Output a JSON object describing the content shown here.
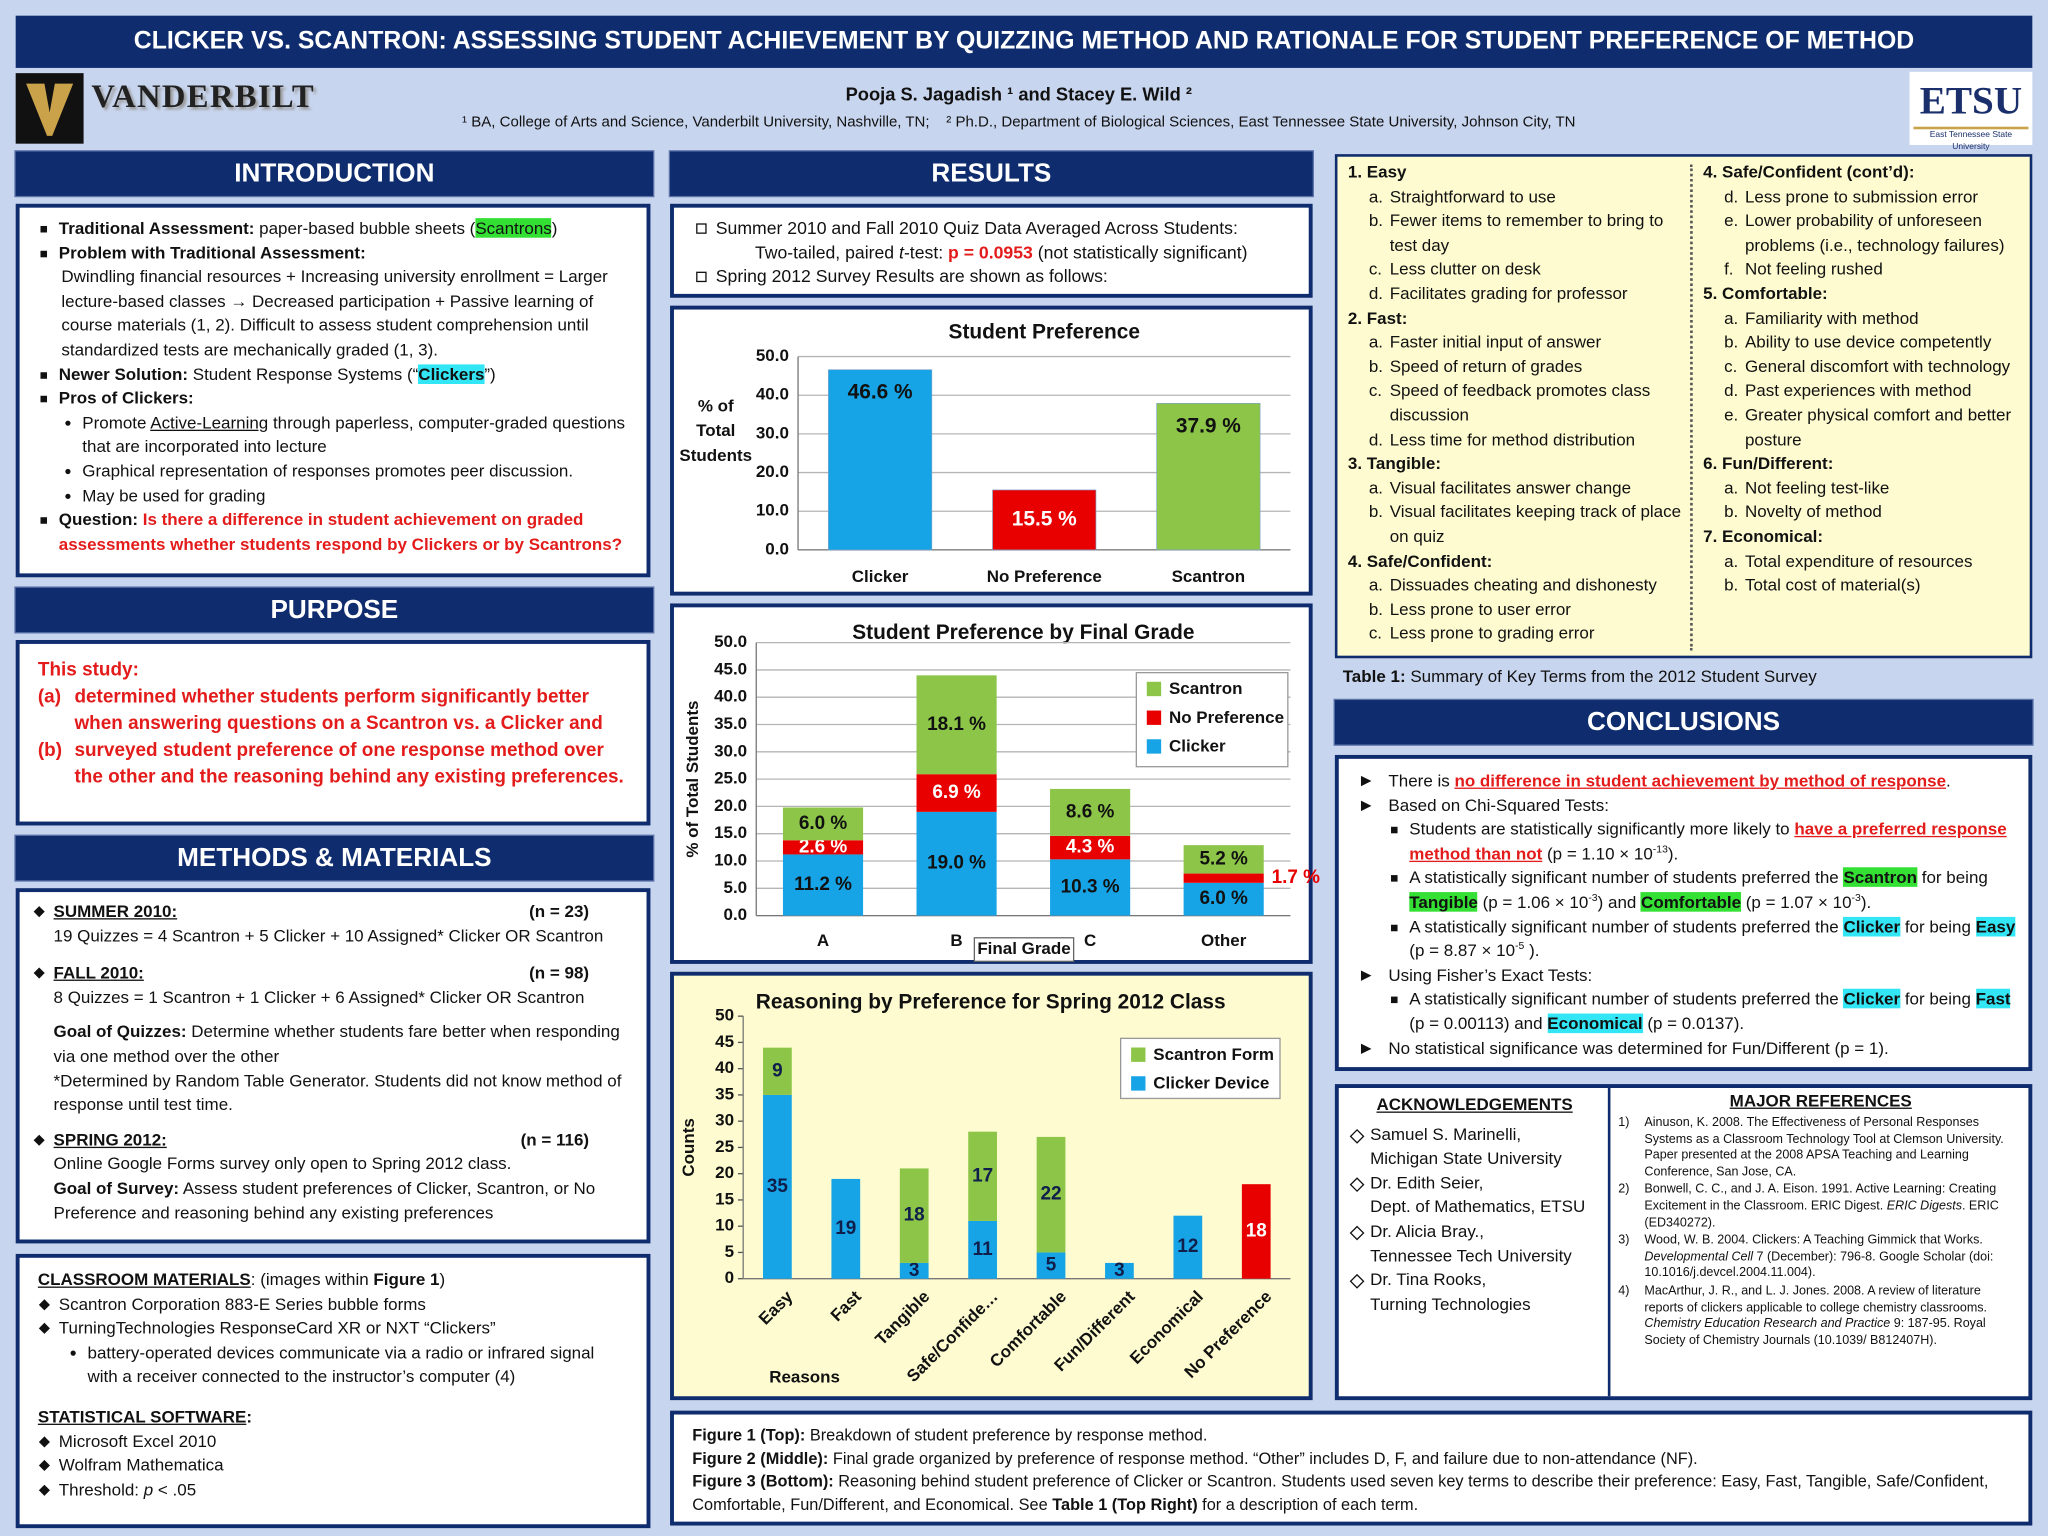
{
  "header": {
    "title": "CLICKER VS. SCANTRON: ASSESSING STUDENT ACHIEVEMENT BY QUIZZING METHOD AND RATIONALE FOR STUDENT PREFERENCE OF METHOD",
    "authors": "Pooja S. Jagadish ¹ and Stacey E. Wild ²",
    "affiliation_1": "¹ BA, College of Arts and Science, Vanderbilt University, Nashville, TN;",
    "affiliation_2": "² Ph.D., Department of Biological Sciences, East Tennessee State University, Johnson City, TN",
    "logo_left": "VANDERBILT",
    "logo_right": "ETSU",
    "logo_right_sub": "East Tennessee State University"
  },
  "introduction": {
    "heading": "INTRODUCTION",
    "items": [
      [
        "Traditional Assessment:",
        " paper-based bubble sheets (",
        "Scantrons",
        ")"
      ],
      [
        "Problem with Traditional Assessment:"
      ],
      [
        "Dwindling financial resources + Increasing university enrollment = Larger lecture-based classes → Decreased participation + Passive learning of course materials (1, 2).  Difficult to assess student comprehension until standardized tests are mechanically graded (1, 3)."
      ],
      [
        "Newer Solution:",
        " Student Response Systems (“",
        "Clickers",
        "”)"
      ],
      [
        "Pros of Clickers:"
      ],
      [
        "Promote ",
        "Active-Learning",
        " through paperless, computer-graded questions that are incorporated into lecture"
      ],
      [
        "Graphical representation of responses promotes peer discussion."
      ],
      [
        "May be used for grading"
      ],
      [
        "Question:",
        " Is there a difference in student achievement on graded assessments whether students respond by Clickers or by Scantrons?"
      ]
    ]
  },
  "purpose": {
    "heading": "PURPOSE",
    "intro": "This study:",
    "points": [
      [
        "(a)",
        "determined whether students perform significantly better when answering questions on a Scantron vs. a Clicker and"
      ],
      [
        "(b)",
        "surveyed student preference of one response method over the other and the reasoning behind any existing preferences."
      ]
    ]
  },
  "methods": {
    "heading": "METHODS & MATERIALS",
    "summer": {
      "label": "SUMMER 2010:",
      "n": "(n = 23)",
      "text": "19 Quizzes = 4 Scantron + 5 Clicker + 10 Assigned* Clicker OR Scantron"
    },
    "fall": {
      "label": "FALL 2010:",
      "n": "(n = 98)",
      "text": "8 Quizzes = 1 Scantron + 1 Clicker + 6 Assigned* Clicker OR Scantron"
    },
    "goal_quizzes": [
      "Goal of Quizzes:",
      "  Determine whether students fare better when responding via one method over the other"
    ],
    "note": "*Determined by Random Table Generator.  Students did not know method of response until test time.",
    "spring": {
      "label": "SPRING 2012:",
      "n": "(n = 116)",
      "text": "Online Google Forms survey only open to Spring 2012 class."
    },
    "goal_survey": [
      "Goal of Survey:",
      "  Assess student preferences of Clicker, Scantron, or No Preference and reasoning behind any existing preferences"
    ]
  },
  "materials": {
    "heading": [
      "CLASSROOM MATERIALS",
      ": (images within ",
      "Figure 1",
      ")"
    ],
    "items": [
      "Scantron Corporation 883-E Series bubble forms",
      "TurningTechnologies ResponseCard XR or NXT “Clickers”"
    ],
    "subitem": "battery-operated devices communicate via a radio or infrared signal with a receiver connected to the instructor’s computer (4)",
    "software_heading": [
      "STATISTICAL SOFTWARE",
      ":"
    ],
    "software": [
      [
        "Microsoft Excel 2010"
      ],
      [
        "Wolfram Mathematica"
      ],
      [
        "Threshold: ",
        "p",
        " < .05"
      ]
    ]
  },
  "results": {
    "heading": "RESULTS",
    "line_1": "Summer 2010 and Fall 2010 Quiz Data Averaged Across Students:",
    "line_2": [
      "Two-tailed, paired ",
      "t",
      "-test: ",
      "p = 0.0953",
      " (not statistically significant)"
    ],
    "line_3": "Spring 2012 Survey Results are shown as follows:"
  },
  "chart_data": [
    {
      "type": "bar",
      "title": "Student Preference",
      "y_label": "% of Total Students",
      "categories": [
        "Clicker",
        "No Preference",
        "Scantron"
      ],
      "values": [
        46.6,
        15.5,
        37.9
      ],
      "value_labels": [
        "46.6 %",
        "15.5 %",
        "37.9 %"
      ],
      "colors": [
        "#16a4e6",
        "#e80000",
        "#8cc548"
      ],
      "ylim": [
        0,
        50
      ],
      "yticks": [
        {
          "value": 0,
          "label": "0.0"
        },
        {
          "value": 10,
          "label": "10.0"
        },
        {
          "value": 20,
          "label": "20.0"
        },
        {
          "value": 30,
          "label": "30.0"
        },
        {
          "value": 40,
          "label": "40.0"
        },
        {
          "value": 50,
          "label": "50.0"
        }
      ],
      "grid": true
    },
    {
      "type": "stacked_bar",
      "title": "Student Preference by Final Grade",
      "x_label": "Final Grade",
      "y_label": "% of Total Students",
      "categories": [
        "A",
        "B",
        "C",
        "Other"
      ],
      "series": [
        {
          "name": "Clicker",
          "color": "#16a4e6",
          "values": [
            11.2,
            19.0,
            10.3,
            6.0
          ],
          "value_labels": [
            "11.2 %",
            "19.0 %",
            "10.3 %",
            "6.0 %"
          ]
        },
        {
          "name": "No Preference",
          "color": "#e80000",
          "values": [
            2.6,
            6.9,
            4.3,
            1.7
          ],
          "value_labels": [
            "2.6 %",
            "6.9 %",
            "4.3 %",
            "1.7 %"
          ]
        },
        {
          "name": "Scantron",
          "color": "#8cc548",
          "values": [
            6.0,
            18.1,
            8.6,
            5.2
          ],
          "value_labels": [
            "6.0 %",
            "18.1 %",
            "8.6 %",
            "5.2 %"
          ]
        }
      ],
      "ylim": [
        0,
        50
      ],
      "yticks": [
        {
          "value": 0,
          "label": "0.0"
        },
        {
          "value": 5,
          "label": "5.0"
        },
        {
          "value": 10,
          "label": "10.0"
        },
        {
          "value": 15,
          "label": "15.0"
        },
        {
          "value": 20,
          "label": "20.0"
        },
        {
          "value": 25,
          "label": "25.0"
        },
        {
          "value": 30,
          "label": "30.0"
        },
        {
          "value": 35,
          "label": "35.0"
        },
        {
          "value": 40,
          "label": "40.0"
        },
        {
          "value": 45,
          "label": "45.0"
        },
        {
          "value": 50,
          "label": "50.0"
        }
      ],
      "grid": true,
      "legend": "upper right"
    },
    {
      "type": "stacked_bar",
      "title": "Reasoning by Preference for Spring 2012 Class",
      "x_label": "Reasons",
      "y_label": "Counts",
      "categories": [
        "Easy",
        "Fast",
        "Tangible",
        "Safe/Confide…",
        "Comfortable",
        "Fun/Different",
        "Economical",
        "No Preference"
      ],
      "series": [
        {
          "name": "Clicker Device",
          "color": "#16a4e6",
          "values": [
            35,
            19,
            3,
            11,
            5,
            3,
            12,
            null
          ]
        },
        {
          "name": "Scantron Form",
          "color": "#8cc548",
          "values": [
            9,
            null,
            18,
            17,
            22,
            null,
            null,
            null
          ]
        },
        {
          "color": "#e80000",
          "values": [
            null,
            null,
            null,
            null,
            null,
            null,
            null,
            18
          ]
        }
      ],
      "ylim": [
        0,
        50
      ],
      "yticks": [
        0,
        5,
        10,
        15,
        20,
        25,
        30,
        35,
        40,
        45,
        50
      ],
      "grid": false,
      "legend": "upper right"
    }
  ],
  "captions": [
    [
      "Figure 1 (Top):",
      " Breakdown of student preference by response method."
    ],
    [
      "Figure 2 (Middle):",
      " Final grade organized by preference of response method. “Other” includes D, F, and failure due to non-attendance (NF)."
    ],
    [
      "Figure 3 (Bottom):",
      " Reasoning behind student preference of Clicker or Scantron.  Students used seven key terms to describe their preference: Easy, Fast, Tangible, Safe/Confident, Comfortable, Fun/Different, and Economical.  See ",
      "Table 1 (Top Right)",
      " for a description of each term."
    ]
  ],
  "key_terms": {
    "columns": [
      [
        {
          "heading": "1.  Easy",
          "items": [
            [
              "a.",
              "Straightforward to use"
            ],
            [
              "b.",
              "Fewer items to remember to bring to test day"
            ],
            [
              "c.",
              "Less clutter on desk"
            ],
            [
              "d.",
              "Facilitates grading for professor"
            ]
          ]
        },
        {
          "heading": "2. Fast:",
          "items": [
            [
              "a.",
              "Faster initial input of answer"
            ],
            [
              "b.",
              "Speed of return of grades"
            ],
            [
              "c.",
              "Speed of feedback promotes class discussion"
            ],
            [
              "d.",
              "Less time for method distribution"
            ]
          ]
        },
        {
          "heading": "3. Tangible:",
          "items": [
            [
              "a.",
              "Visual facilitates answer change"
            ],
            [
              "b.",
              "Visual facilitates keeping track of place on quiz"
            ]
          ]
        },
        {
          "heading": "4. Safe/Confident:",
          "items": [
            [
              "a.",
              "Dissuades cheating and dishonesty"
            ],
            [
              "b.",
              "Less prone to user error"
            ],
            [
              "c.",
              "Less prone to grading error"
            ]
          ]
        }
      ],
      [
        {
          "heading": "4. Safe/Confident (cont’d):",
          "items": [
            [
              "d.",
              "Less prone to submission error"
            ],
            [
              "e.",
              "Lower probability of unforeseen problems (i.e., technology failures)"
            ],
            [
              "f.",
              "Not feeling rushed"
            ]
          ]
        },
        {
          "heading": "5. Comfortable:",
          "items": [
            [
              "a.",
              "Familiarity with method"
            ],
            [
              "b.",
              "Ability to use device competently"
            ],
            [
              "c.",
              "General discomfort with technology"
            ],
            [
              "d.",
              "Past experiences with method"
            ],
            [
              "e.",
              "Greater physical comfort and better posture"
            ]
          ]
        },
        {
          "heading": "6. Fun/Different:",
          "items": [
            [
              "a.",
              "Not feeling test-like"
            ],
            [
              "b.",
              "Novelty of method"
            ]
          ]
        },
        {
          "heading": "7.  Economical:",
          "items": [
            [
              "a.",
              "Total expenditure of resources"
            ],
            [
              "b.",
              "Total cost of material(s)"
            ]
          ]
        }
      ]
    ],
    "caption": [
      "Table 1:",
      " Summary of Key Terms from the 2012 Student Survey"
    ]
  },
  "conclusions": {
    "heading": "CONCLUSIONS",
    "items": [
      [
        "There is ",
        "no difference in student achievement by method of response",
        "."
      ],
      [
        "Based on Chi-Squared Tests:"
      ],
      [
        "Students are statistically significantly more likely to ",
        "have a preferred response method than not",
        " (p = 1.10 × 10",
        "-13",
        ")."
      ],
      [
        "A statistically significant number of students preferred the ",
        "Scantron",
        " for being ",
        "Tangible",
        " (p = 1.06 × 10",
        "-3",
        ") and ",
        "Comfortable",
        " (p = 1.07 × 10",
        "-3",
        ")."
      ],
      [
        "A statistically significant number of students preferred the ",
        "Clicker",
        " for being ",
        "Easy",
        " (p = 8.87 × 10",
        "-5",
        " )."
      ],
      [
        "Using Fisher’s Exact Tests:"
      ],
      [
        "A statistically significant number of students preferred the ",
        "Clicker",
        " for being ",
        "Fast",
        " (p = 0.00113) and  ",
        "Economical",
        " (p = 0.0137)."
      ],
      [
        "No statistical significance was determined for Fun/Different  (p = 1)."
      ]
    ]
  },
  "acknowledgements": {
    "heading": "ACKNOWLEDGEMENTS",
    "items": [
      [
        "Samuel S. Marinelli,",
        "Michigan State University"
      ],
      [
        "Dr. Edith Seier,",
        "Dept. of Mathematics, ETSU"
      ],
      [
        "Dr. Alicia Bray.,",
        "Tennessee Tech University"
      ],
      [
        "Dr. Tina Rooks,",
        "Turning Technologies"
      ]
    ]
  },
  "references": {
    "heading": "MAJOR REFERENCES",
    "items": [
      [
        "1)",
        "Ainuson, K.  2008.  The Effectiveness of Personal Responses Systems as a Classroom Technology Tool at Clemson University.  Paper presented at the 2008 APSA Teaching and Learning Conference, San Jose, CA."
      ],
      [
        "2)",
        "Bonwell, C. C., and J. A. Eison.  1991.  Active Learning: Creating Excitement in the Classroom.  ERIC Digest.  ",
        "ERIC Digests",
        ".  ERIC (ED340272)."
      ],
      [
        "3)",
        "Wood, W. B.  2004.  Clickers: A Teaching Gimmick that Works.  ",
        "Developmental Cell",
        " 7 (December): 796-8.  Google Scholar (doi: 10.1016/j.devcel.2004.11.004)."
      ],
      [
        "4)",
        "MacArthur, J. R., and L. J. Jones.  2008.  A review of literature reports of clickers applicable to college chemistry classrooms.  ",
        "Chemistry Education Research and Practice",
        " 9: 187-95.  Royal Society of Chemistry Journals (10.1039/ B812407H)."
      ]
    ]
  }
}
